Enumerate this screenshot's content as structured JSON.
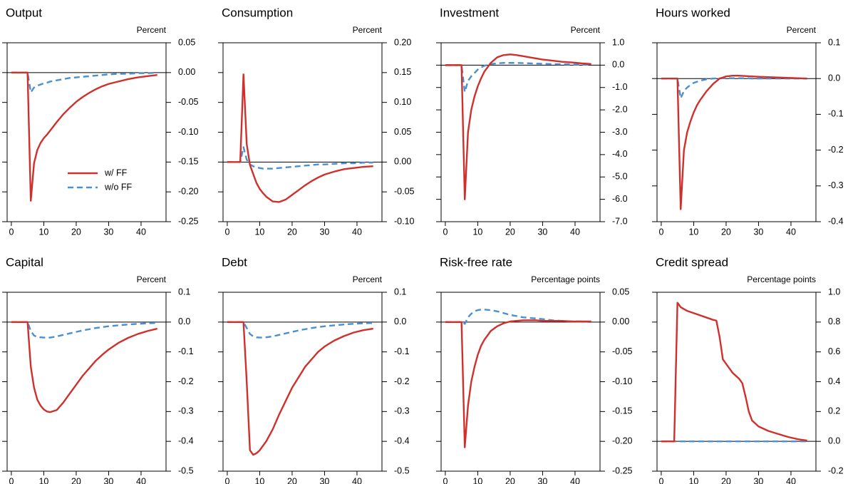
{
  "chart_data": [
    {
      "type": "line",
      "title": "Output",
      "unit": "Percent",
      "x": [
        0,
        1,
        2,
        3,
        4,
        5,
        6,
        7,
        8,
        9,
        10,
        11,
        12,
        14,
        16,
        18,
        20,
        22,
        24,
        26,
        28,
        30,
        33,
        36,
        39,
        42,
        45
      ],
      "xlim": [
        -1.3,
        47.7
      ],
      "xticks": [
        0,
        10,
        20,
        30,
        40
      ],
      "ylim": [
        -0.25,
        0.05
      ],
      "yticks": [
        0.05,
        {
          "value": 0,
          "label": "0.00"
        },
        -0.05,
        {
          "value": -0.1,
          "label": "-0.10"
        },
        -0.15,
        {
          "value": -0.2,
          "label": "-0.20"
        },
        -0.25
      ],
      "hline": 0,
      "legend": "lower center",
      "series": [
        {
          "name": "w/ FF",
          "color": "#d0302b",
          "linestyle": "solid",
          "values": [
            0,
            0,
            0,
            0,
            0,
            0,
            -0.215,
            -0.152,
            -0.13,
            -0.118,
            -0.11,
            -0.104,
            -0.097,
            -0.083,
            -0.07,
            -0.059,
            -0.049,
            -0.041,
            -0.034,
            -0.028,
            -0.023,
            -0.019,
            -0.015,
            -0.011,
            -0.008,
            -0.006,
            -0.004
          ]
        },
        {
          "name": "w/o FF",
          "color": "#4a90d0",
          "linestyle": "dashed",
          "values": [
            0,
            0,
            0,
            0,
            0,
            0,
            -0.033,
            -0.025,
            -0.022,
            -0.02,
            -0.018,
            -0.017,
            -0.015,
            -0.013,
            -0.011,
            -0.009,
            -0.008,
            -0.007,
            -0.006,
            -0.005,
            -0.004,
            -0.003,
            -0.002,
            -0.002,
            -0.001,
            -0.001,
            0
          ]
        }
      ]
    },
    {
      "type": "line",
      "title": "Consumption",
      "unit": "Percent",
      "x": [
        0,
        1,
        2,
        3,
        4,
        5,
        6,
        7,
        8,
        9,
        10,
        11,
        12,
        14,
        16,
        18,
        20,
        22,
        24,
        26,
        28,
        30,
        33,
        36,
        39,
        42,
        45
      ],
      "xlim": [
        -1.3,
        47.7
      ],
      "xticks": [
        0,
        10,
        20,
        30,
        40
      ],
      "ylim": [
        -0.1,
        0.2
      ],
      "yticks": [
        {
          "value": 0.2,
          "label": "0.20"
        },
        0.15,
        {
          "value": 0.1,
          "label": "0.10"
        },
        0.05,
        {
          "value": 0,
          "label": "0.00"
        },
        -0.05,
        {
          "value": -0.1,
          "label": "-0.10"
        }
      ],
      "hline": 0,
      "series": [
        {
          "name": "w/ FF",
          "color": "#d0302b",
          "linestyle": "solid",
          "values": [
            0,
            0,
            0,
            0,
            0,
            0.147,
            0.03,
            -0.005,
            -0.02,
            -0.035,
            -0.045,
            -0.052,
            -0.058,
            -0.066,
            -0.067,
            -0.063,
            -0.055,
            -0.047,
            -0.039,
            -0.032,
            -0.026,
            -0.021,
            -0.016,
            -0.012,
            -0.01,
            -0.008,
            -0.007
          ]
        },
        {
          "name": "w/o FF",
          "color": "#4a90d0",
          "linestyle": "dashed",
          "values": [
            0,
            0,
            0,
            0,
            0,
            0.025,
            0.004,
            -0.004,
            -0.007,
            -0.009,
            -0.01,
            -0.011,
            -0.011,
            -0.011,
            -0.01,
            -0.009,
            -0.008,
            -0.007,
            -0.006,
            -0.005,
            -0.004,
            -0.004,
            -0.003,
            -0.002,
            -0.002,
            -0.001,
            -0.001
          ]
        }
      ]
    },
    {
      "type": "line",
      "title": "Investment",
      "unit": "Percent",
      "x": [
        0,
        1,
        2,
        3,
        4,
        5,
        6,
        7,
        8,
        9,
        10,
        11,
        12,
        14,
        16,
        18,
        20,
        22,
        24,
        26,
        28,
        30,
        33,
        36,
        39,
        42,
        45
      ],
      "xlim": [
        -1.3,
        47.7
      ],
      "xticks": [
        0,
        10,
        20,
        30,
        40
      ],
      "ylim": [
        -7,
        1
      ],
      "yticks": [
        {
          "value": 1,
          "label": "1.0"
        },
        {
          "value": 0,
          "label": "0.0"
        },
        {
          "value": -1,
          "label": "-1.0"
        },
        {
          "value": -2,
          "label": "-2.0"
        },
        {
          "value": -3,
          "label": "-3.0"
        },
        {
          "value": -4,
          "label": "-4.0"
        },
        {
          "value": -5,
          "label": "-5.0"
        },
        {
          "value": -6,
          "label": "-6.0"
        },
        {
          "value": -7,
          "label": "-7.0"
        }
      ],
      "hline": 0,
      "series": [
        {
          "name": "w/ FF",
          "color": "#d0302b",
          "linestyle": "solid",
          "values": [
            0,
            0,
            0,
            0,
            0,
            0,
            -6.0,
            -3.0,
            -2.0,
            -1.4,
            -0.95,
            -0.6,
            -0.3,
            0.1,
            0.35,
            0.45,
            0.48,
            0.45,
            0.4,
            0.35,
            0.3,
            0.25,
            0.2,
            0.15,
            0.12,
            0.08,
            0.05
          ]
        },
        {
          "name": "w/o FF",
          "color": "#4a90d0",
          "linestyle": "dashed",
          "values": [
            0,
            0,
            0,
            0,
            0,
            0,
            -1.2,
            -0.7,
            -0.5,
            -0.35,
            -0.2,
            -0.1,
            -0.03,
            0.05,
            0.08,
            0.1,
            0.1,
            0.1,
            0.09,
            0.08,
            0.07,
            0.06,
            0.05,
            0.04,
            0.03,
            0.02,
            0.01
          ]
        }
      ]
    },
    {
      "type": "line",
      "title": "Hours worked",
      "unit": "Percent",
      "x": [
        0,
        1,
        2,
        3,
        4,
        5,
        6,
        7,
        8,
        9,
        10,
        11,
        12,
        14,
        16,
        18,
        20,
        22,
        24,
        26,
        28,
        30,
        33,
        36,
        39,
        42,
        45
      ],
      "xlim": [
        -1.3,
        47.7
      ],
      "xticks": [
        0,
        10,
        20,
        30,
        40
      ],
      "ylim": [
        -0.4,
        0.1
      ],
      "yticks": [
        0.1,
        {
          "value": 0,
          "label": "0.0"
        },
        -0.1,
        -0.2,
        -0.3,
        -0.4
      ],
      "hline": 0,
      "series": [
        {
          "name": "w/ FF",
          "color": "#d0302b",
          "linestyle": "solid",
          "values": [
            0,
            0,
            0,
            0,
            0,
            0,
            -0.365,
            -0.2,
            -0.15,
            -0.12,
            -0.095,
            -0.075,
            -0.06,
            -0.035,
            -0.015,
            0,
            0.006,
            0.008,
            0.008,
            0.007,
            0.006,
            0.005,
            0.004,
            0.003,
            0.002,
            0.001,
            0
          ]
        },
        {
          "name": "w/o FF",
          "color": "#4a90d0",
          "linestyle": "dashed",
          "values": [
            0,
            0,
            0,
            0,
            0,
            0,
            -0.055,
            -0.035,
            -0.025,
            -0.018,
            -0.012,
            -0.009,
            -0.006,
            -0.002,
            0,
            0.001,
            0.001,
            0.001,
            0.001,
            0.001,
            0,
            0,
            0,
            0,
            0,
            0,
            0
          ]
        }
      ]
    },
    {
      "type": "line",
      "title": "Capital",
      "unit": "Percent",
      "x": [
        0,
        1,
        2,
        3,
        4,
        5,
        6,
        7,
        8,
        9,
        10,
        11,
        12,
        14,
        16,
        18,
        20,
        22,
        24,
        26,
        28,
        30,
        33,
        36,
        39,
        42,
        45
      ],
      "xlim": [
        -1.3,
        47.7
      ],
      "xticks": [
        0,
        10,
        20,
        30,
        40
      ],
      "ylim": [
        -0.5,
        0.1
      ],
      "yticks": [
        0.1,
        {
          "value": 0,
          "label": "0.0"
        },
        -0.1,
        -0.2,
        -0.3,
        -0.4,
        -0.5
      ],
      "hline": 0,
      "series": [
        {
          "name": "w/ FF",
          "color": "#d0302b",
          "linestyle": "solid",
          "values": [
            0,
            0,
            0,
            0,
            0,
            0,
            -0.15,
            -0.22,
            -0.26,
            -0.28,
            -0.293,
            -0.3,
            -0.302,
            -0.295,
            -0.27,
            -0.24,
            -0.21,
            -0.18,
            -0.155,
            -0.13,
            -0.11,
            -0.092,
            -0.07,
            -0.053,
            -0.04,
            -0.03,
            -0.022
          ]
        },
        {
          "name": "w/o FF",
          "color": "#4a90d0",
          "linestyle": "dashed",
          "values": [
            0,
            0,
            0,
            0,
            0,
            0,
            -0.03,
            -0.045,
            -0.05,
            -0.051,
            -0.052,
            -0.052,
            -0.052,
            -0.048,
            -0.043,
            -0.038,
            -0.033,
            -0.028,
            -0.024,
            -0.02,
            -0.017,
            -0.014,
            -0.011,
            -0.008,
            -0.006,
            -0.004,
            -0.003
          ]
        }
      ]
    },
    {
      "type": "line",
      "title": "Debt",
      "unit": "Percent",
      "x": [
        0,
        1,
        2,
        3,
        4,
        5,
        6,
        7,
        8,
        9,
        10,
        11,
        12,
        14,
        16,
        18,
        20,
        22,
        24,
        26,
        28,
        30,
        33,
        36,
        39,
        42,
        45
      ],
      "xlim": [
        -1.3,
        47.7
      ],
      "xticks": [
        0,
        10,
        20,
        30,
        40
      ],
      "ylim": [
        -0.5,
        0.1
      ],
      "yticks": [
        0.1,
        {
          "value": 0,
          "label": "0.0"
        },
        -0.1,
        -0.2,
        -0.3,
        -0.4,
        -0.5
      ],
      "hline": 0,
      "series": [
        {
          "name": "w/ FF",
          "color": "#d0302b",
          "linestyle": "solid",
          "values": [
            0,
            0,
            0,
            0,
            0,
            0,
            -0.2,
            -0.43,
            -0.445,
            -0.44,
            -0.43,
            -0.415,
            -0.4,
            -0.36,
            -0.31,
            -0.265,
            -0.22,
            -0.185,
            -0.15,
            -0.125,
            -0.1,
            -0.082,
            -0.062,
            -0.047,
            -0.035,
            -0.027,
            -0.022
          ]
        },
        {
          "name": "w/o FF",
          "color": "#4a90d0",
          "linestyle": "dashed",
          "values": [
            0,
            0,
            0,
            0,
            0,
            0,
            -0.02,
            -0.04,
            -0.048,
            -0.051,
            -0.052,
            -0.052,
            -0.051,
            -0.048,
            -0.043,
            -0.038,
            -0.033,
            -0.028,
            -0.024,
            -0.02,
            -0.017,
            -0.014,
            -0.011,
            -0.008,
            -0.006,
            -0.004,
            -0.003
          ]
        }
      ]
    },
    {
      "type": "line",
      "title": "Risk-free rate",
      "unit": "Percentage points",
      "x": [
        0,
        1,
        2,
        3,
        4,
        5,
        6,
        7,
        8,
        9,
        10,
        11,
        12,
        14,
        16,
        18,
        20,
        22,
        24,
        26,
        28,
        30,
        33,
        36,
        39,
        42,
        45
      ],
      "xlim": [
        -1.3,
        47.7
      ],
      "xticks": [
        0,
        10,
        20,
        30,
        40
      ],
      "ylim": [
        -0.25,
        0.05
      ],
      "yticks": [
        0.05,
        {
          "value": 0,
          "label": "0.00"
        },
        -0.05,
        {
          "value": -0.1,
          "label": "-0.10"
        },
        -0.15,
        {
          "value": -0.2,
          "label": "-0.20"
        },
        -0.25
      ],
      "hline": 0,
      "series": [
        {
          "name": "w/ FF",
          "color": "#d0302b",
          "linestyle": "solid",
          "values": [
            0,
            0,
            0,
            0,
            0,
            0,
            -0.21,
            -0.14,
            -0.1,
            -0.075,
            -0.055,
            -0.04,
            -0.03,
            -0.015,
            -0.007,
            -0.002,
            0.001,
            0.002,
            0.003,
            0.003,
            0.003,
            0.002,
            0.002,
            0.002,
            0.001,
            0.001,
            0.001
          ]
        },
        {
          "name": "w/o FF",
          "color": "#4a90d0",
          "linestyle": "dashed",
          "values": [
            0,
            0,
            0,
            0,
            0,
            0,
            -0.003,
            0.008,
            0.014,
            0.018,
            0.02,
            0.021,
            0.021,
            0.02,
            0.018,
            0.015,
            0.012,
            0.01,
            0.008,
            0.007,
            0.006,
            0.005,
            0.003,
            0.002,
            0.001,
            0.001,
            0
          ]
        }
      ]
    },
    {
      "type": "line",
      "title": "Credit spread",
      "unit": "Percentage points",
      "x": [
        0,
        4,
        5,
        6,
        8,
        10,
        12,
        14,
        16,
        17,
        18,
        19,
        20,
        22,
        24,
        25,
        26,
        27,
        28,
        30,
        33,
        36,
        39,
        42,
        45
      ],
      "xlim": [
        -1.3,
        47.7
      ],
      "xticks": [
        0,
        10,
        20,
        30,
        40
      ],
      "ylim": [
        -0.2,
        1
      ],
      "yticks": [
        {
          "value": 1,
          "label": "1.0"
        },
        0.8,
        0.6,
        0.4,
        0.2,
        {
          "value": 0,
          "label": "0.0"
        },
        -0.2
      ],
      "hline": 0,
      "series": [
        {
          "name": "w/ FF",
          "color": "#d0302b",
          "linestyle": "solid",
          "values": [
            0,
            0,
            0.93,
            0.9,
            0.875,
            0.86,
            0.845,
            0.83,
            0.815,
            0.81,
            0.7,
            0.55,
            0.52,
            0.46,
            0.42,
            0.39,
            0.3,
            0.2,
            0.14,
            0.1,
            0.07,
            0.05,
            0.03,
            0.015,
            0.005
          ]
        },
        {
          "name": "w/o FF",
          "color": "#4a90d0",
          "linestyle": "dashed",
          "values": [
            0,
            0,
            0,
            0,
            0,
            0,
            0,
            0,
            0,
            0,
            0,
            0,
            0,
            0,
            0,
            0,
            0,
            0,
            0,
            0,
            0,
            0,
            0,
            0,
            0
          ]
        }
      ]
    }
  ]
}
